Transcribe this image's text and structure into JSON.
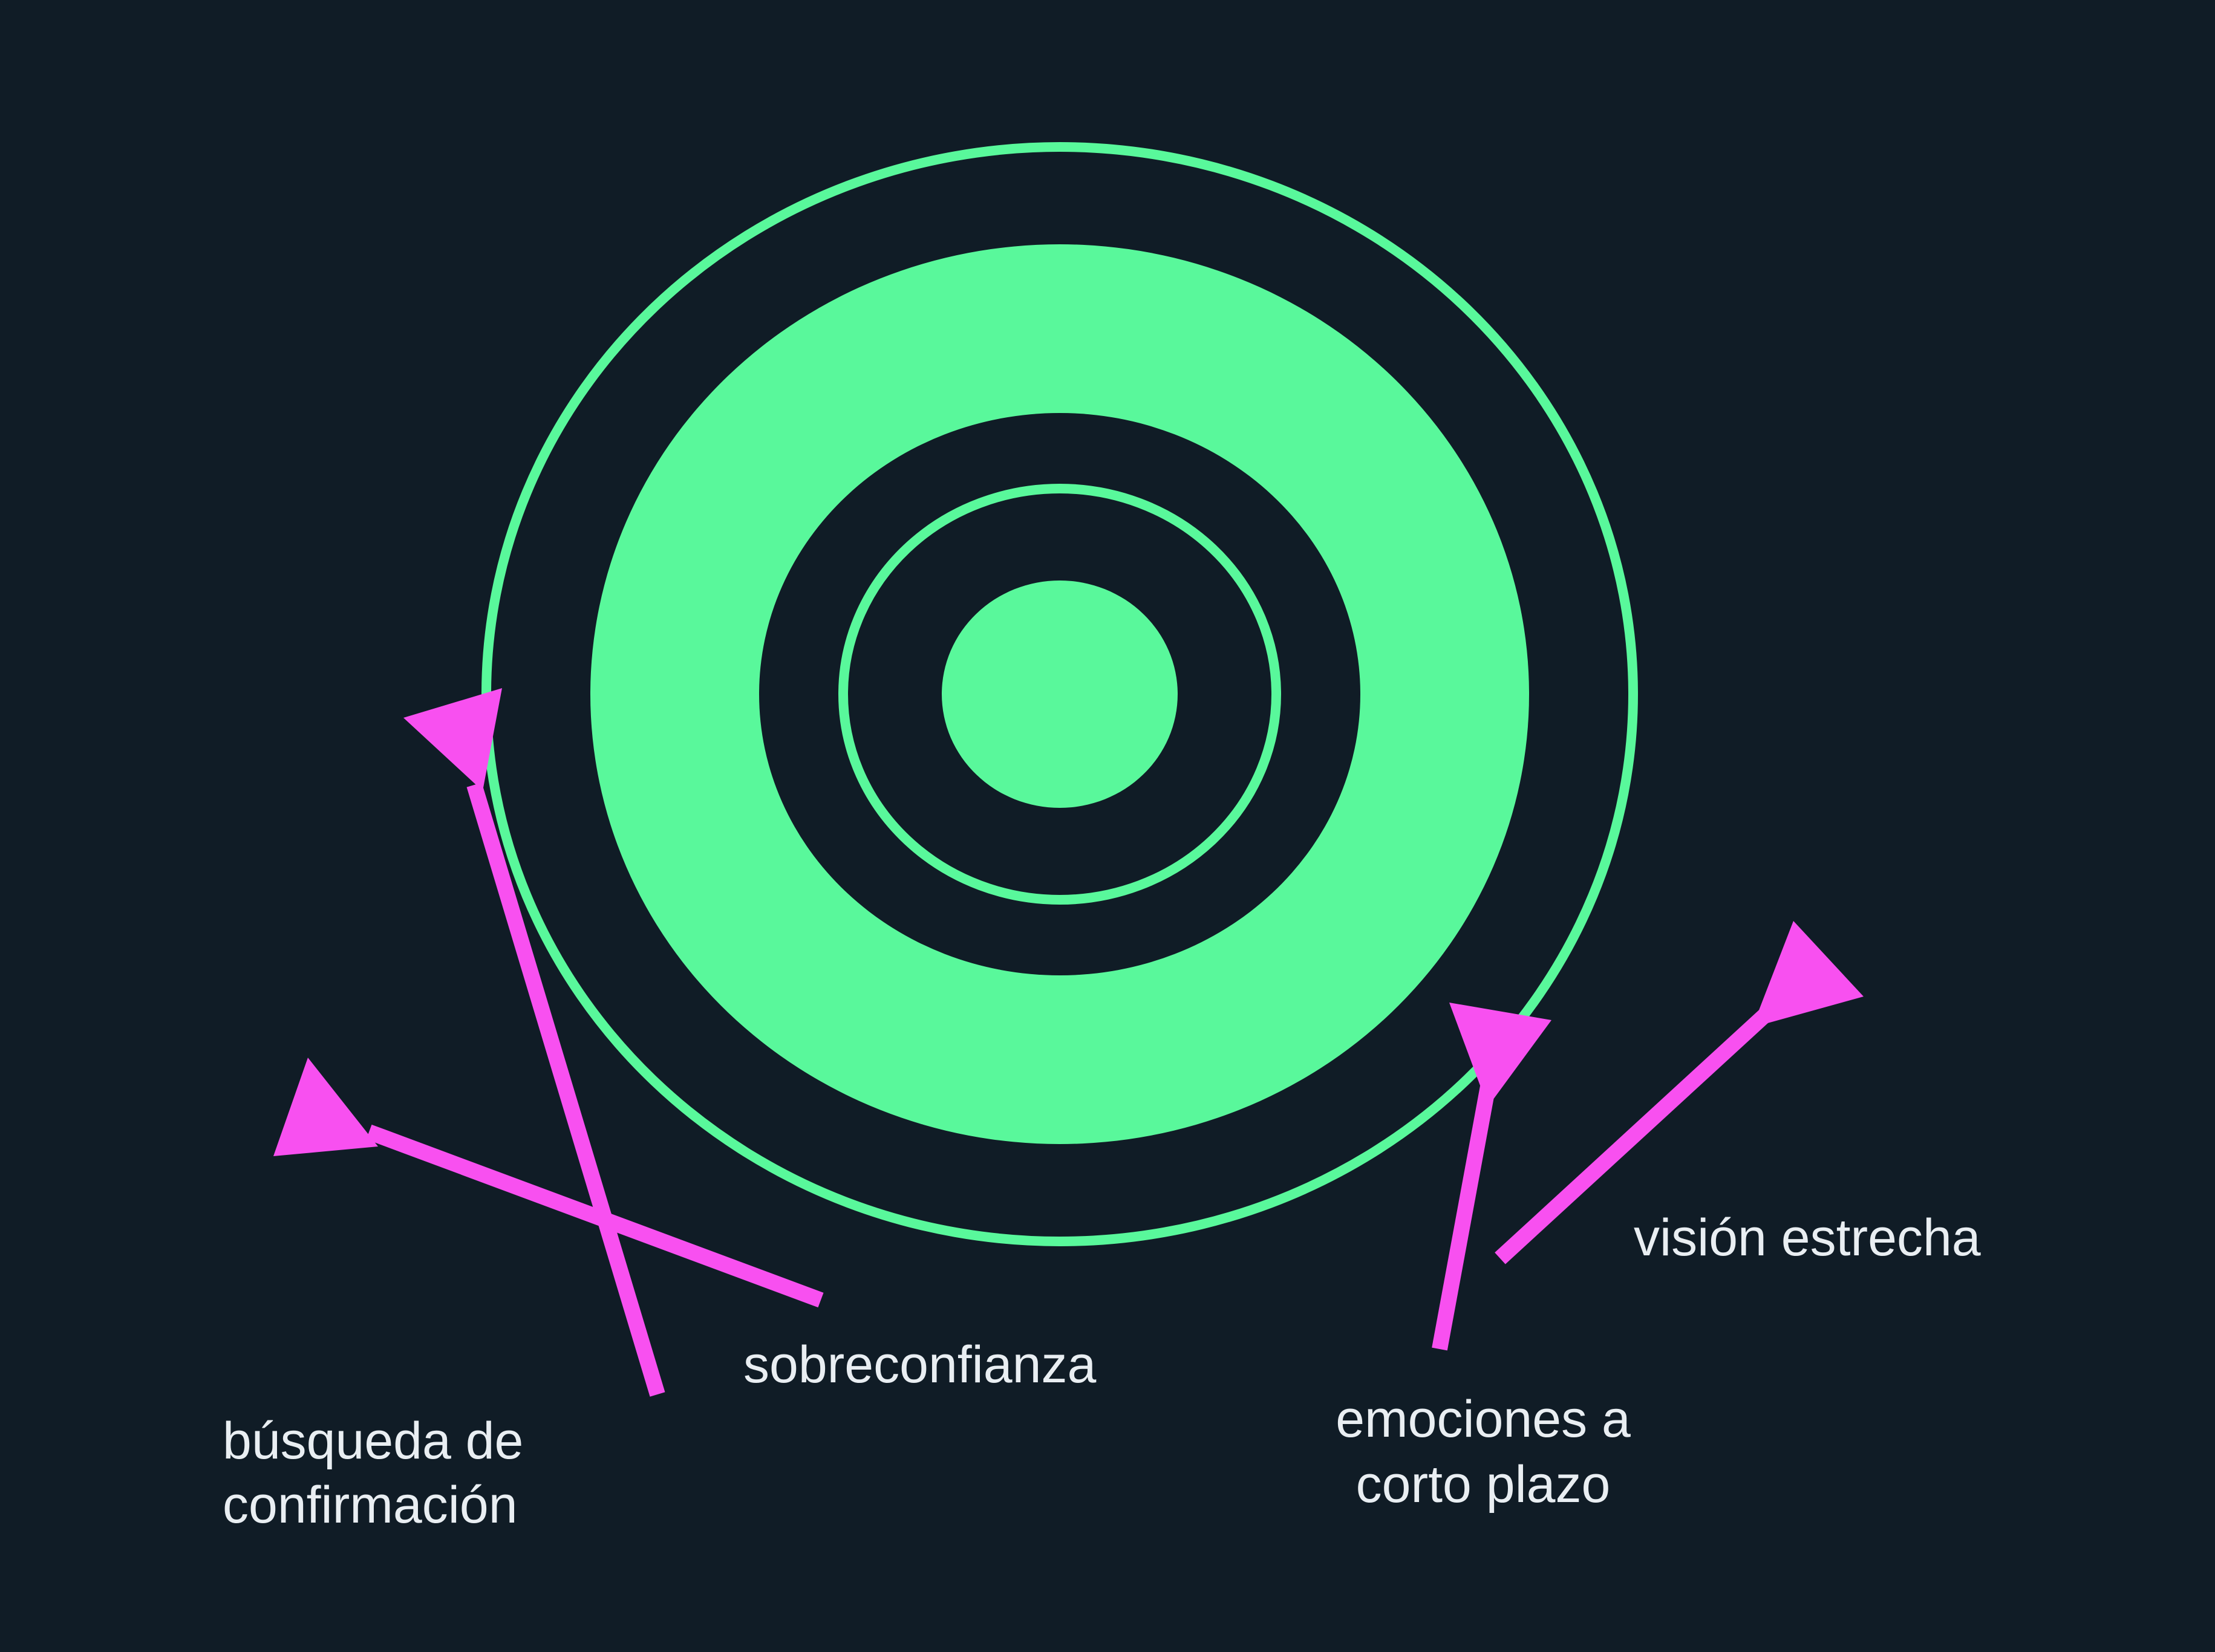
{
  "colors": {
    "background": "#101c26",
    "target": "#59f89b",
    "arrow": "#f850f0",
    "label": "#e9eef2"
  },
  "labels": {
    "confirmation_line1": "búsqueda de",
    "confirmation_line2": "confirmación",
    "overconfidence": "sobreconfianza",
    "short_term_line1": "emociones a",
    "short_term_line2": "corto plazo",
    "narrow_vision": "visión estrecha"
  }
}
